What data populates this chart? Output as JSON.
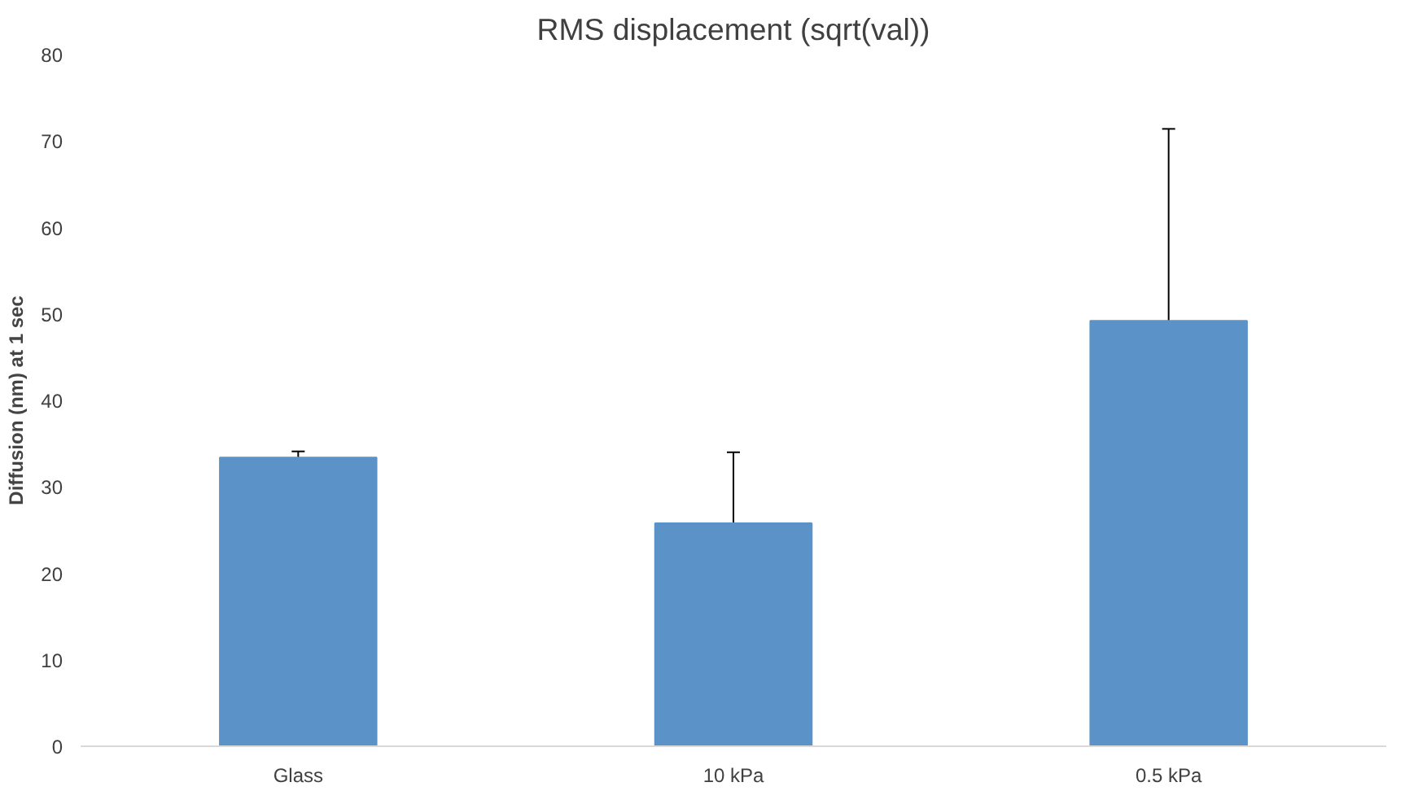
{
  "chart_data": {
    "type": "bar",
    "title": "RMS displacement (sqrt(val))",
    "ylabel": "Diffusion (nm) at 1 sec",
    "categories": [
      "Glass",
      "10 kPa",
      "0.5 kPa"
    ],
    "values": [
      33.4,
      25.8,
      49.2
    ],
    "errors": [
      [
        33.4,
        34.1
      ],
      [
        25.8,
        34.0
      ],
      [
        49.2,
        71.4
      ]
    ],
    "color": "#5b93c8",
    "ylim": [
      0,
      80
    ],
    "yticks": [
      0,
      10,
      20,
      30,
      40,
      50,
      60,
      70,
      80
    ],
    "grid": false
  }
}
